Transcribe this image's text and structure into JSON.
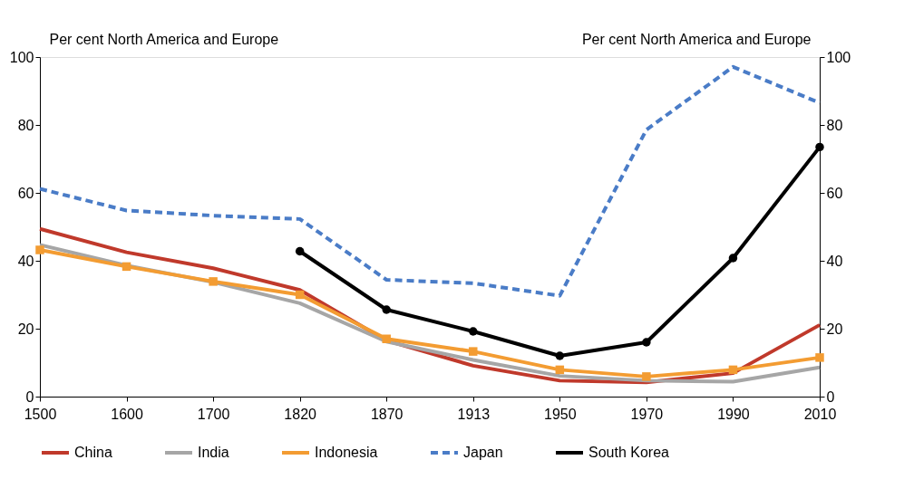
{
  "chart_data": {
    "type": "line",
    "ylabel": "Per cent North America and Europe",
    "y2label": "Per cent North America and Europe",
    "categories": [
      "1500",
      "1600",
      "1700",
      "1820",
      "1870",
      "1913",
      "1950",
      "1970",
      "1990",
      "2010"
    ],
    "series": [
      {
        "name": "China",
        "color": "#c0392b",
        "marker": "none",
        "line_style": "solid",
        "values": [
          49.4,
          42.5,
          37.8,
          31.4,
          16.5,
          9.1,
          4.7,
          4.2,
          6.9,
          21.1
        ]
      },
      {
        "name": "India",
        "color": "#a6a6a6",
        "marker": "none",
        "line_style": "solid",
        "values": [
          44.7,
          38.6,
          33.7,
          27.5,
          16.2,
          10.8,
          6.1,
          4.7,
          4.4,
          8.6
        ]
      },
      {
        "name": "Indonesia",
        "color": "#f39c32",
        "marker": "square",
        "line_style": "solid",
        "values": [
          43.2,
          38.3,
          33.9,
          30.0,
          17.0,
          13.3,
          7.9,
          5.9,
          7.9,
          11.5
        ]
      },
      {
        "name": "Japan",
        "color": "#4a7cc7",
        "marker": "none",
        "line_style": "dashed",
        "values": [
          61.2,
          54.8,
          53.3,
          52.3,
          34.4,
          33.4,
          29.7,
          78.6,
          97.1,
          86.5
        ]
      },
      {
        "name": "South Korea",
        "color": "#000000",
        "marker": "circle",
        "line_style": "solid",
        "values": [
          null,
          null,
          null,
          42.8,
          25.6,
          19.2,
          12.0,
          16.0,
          40.8,
          73.5
        ]
      }
    ],
    "ylim": [
      0,
      100
    ],
    "yticks": [
      0,
      20,
      40,
      60,
      80,
      100
    ],
    "y2lim": [
      0,
      100
    ],
    "y2ticks": [
      0,
      20,
      40,
      60,
      80,
      100
    ],
    "grid": false,
    "legend": "bottom"
  }
}
